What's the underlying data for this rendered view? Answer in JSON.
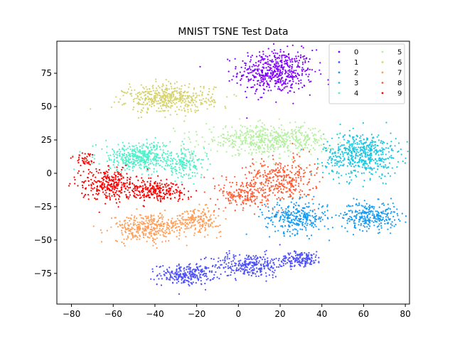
{
  "chart_data": {
    "type": "scatter",
    "title": "MNIST TSNE Test Data",
    "xlabel": "",
    "ylabel": "",
    "xlim": [
      -87,
      82
    ],
    "ylim": [
      -98,
      99
    ],
    "xticks": [
      -80,
      -60,
      -40,
      -20,
      0,
      20,
      40,
      60,
      80
    ],
    "yticks": [
      -75,
      -50,
      -25,
      0,
      25,
      50,
      75
    ],
    "grid": false,
    "legend_position": "top-right",
    "legend_columns": 2,
    "series": [
      {
        "name": "0",
        "color": "#8000ff",
        "clusters": [
          {
            "cx": 18,
            "cy": 76,
            "sx": 12,
            "sy": 11,
            "n": 520
          }
        ]
      },
      {
        "name": "1",
        "color": "#4b4ffc",
        "clusters": [
          {
            "cx": -25,
            "cy": -76,
            "sx": 9,
            "sy": 5,
            "n": 240
          },
          {
            "cx": 5,
            "cy": -69,
            "sx": 12,
            "sy": 6,
            "n": 280
          },
          {
            "cx": 30,
            "cy": -64,
            "sx": 7,
            "sy": 3.5,
            "n": 160
          }
        ]
      },
      {
        "name": "2",
        "color": "#169bf3",
        "clusters": [
          {
            "cx": 28,
            "cy": -33,
            "sx": 10,
            "sy": 8,
            "n": 300
          },
          {
            "cx": 63,
            "cy": -32,
            "sx": 9,
            "sy": 7,
            "n": 280
          }
        ]
      },
      {
        "name": "3",
        "color": "#1ac7e2",
        "clusters": [
          {
            "cx": 59,
            "cy": 14,
            "sx": 12,
            "sy": 11,
            "n": 540
          }
        ]
      },
      {
        "name": "4",
        "color": "#4ef0c9",
        "clusters": [
          {
            "cx": -47,
            "cy": 12,
            "sx": 14,
            "sy": 7,
            "n": 430
          },
          {
            "cx": -26,
            "cy": 6,
            "sx": 7,
            "sy": 6,
            "n": 140
          }
        ]
      },
      {
        "name": "5",
        "color": "#b4f0a0",
        "clusters": [
          {
            "cx": 14,
            "cy": 25,
            "sx": 20,
            "sy": 7,
            "n": 560
          }
        ]
      },
      {
        "name": "6",
        "color": "#d6d36e",
        "clusters": [
          {
            "cx": -33,
            "cy": 56,
            "sx": 14,
            "sy": 7,
            "n": 480
          }
        ]
      },
      {
        "name": "7",
        "color": "#ff9e57",
        "clusters": [
          {
            "cx": -44,
            "cy": -41,
            "sx": 11,
            "sy": 7,
            "n": 330
          },
          {
            "cx": -20,
            "cy": -35,
            "sx": 8,
            "sy": 6,
            "n": 200
          }
        ]
      },
      {
        "name": "8",
        "color": "#ff5c35",
        "clusters": [
          {
            "cx": 20,
            "cy": -5,
            "sx": 11,
            "sy": 11,
            "n": 330
          },
          {
            "cx": 3,
            "cy": -16,
            "sx": 8,
            "sy": 8,
            "n": 180
          }
        ]
      },
      {
        "name": "9",
        "color": "#ff0000",
        "clusters": [
          {
            "cx": -62,
            "cy": -8,
            "sx": 9,
            "sy": 8,
            "n": 300
          },
          {
            "cx": -40,
            "cy": -13,
            "sx": 10,
            "sy": 5,
            "n": 230
          },
          {
            "cx": -74,
            "cy": 10,
            "sx": 3,
            "sy": 4,
            "n": 40
          }
        ]
      }
    ]
  }
}
